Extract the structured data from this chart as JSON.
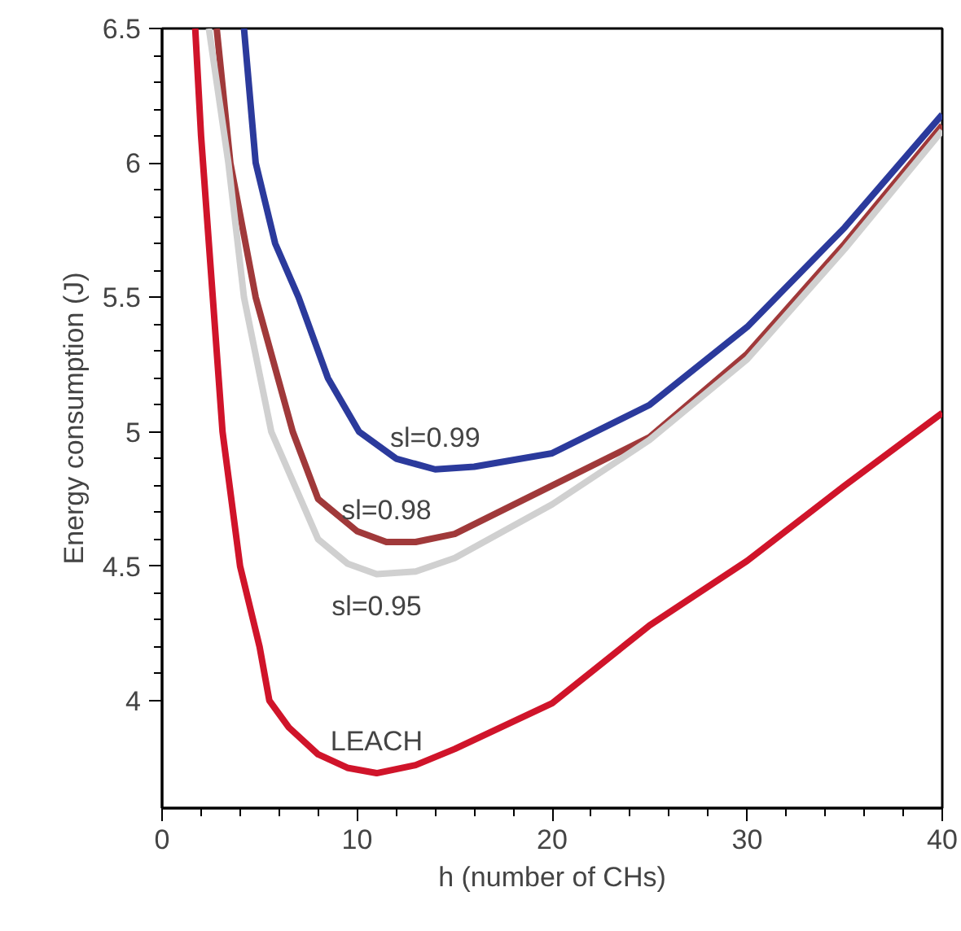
{
  "chart_data": {
    "type": "line",
    "xlabel": "h (number of CHs)",
    "ylabel": "Energy consumption (J)",
    "xlim": [
      0,
      40
    ],
    "ylim": [
      3.6,
      6.5
    ],
    "xticks": [
      0,
      10,
      20,
      30,
      40
    ],
    "yticks": [
      4,
      4.5,
      5,
      5.5,
      6,
      6.5
    ],
    "grid": false,
    "series": [
      {
        "name": "sl=0.99",
        "color": "#2b3a9c",
        "x": [
          4.2,
          4.8,
          5.8,
          7.0,
          8.5,
          10.1,
          12,
          14,
          16,
          20,
          25,
          30,
          35,
          40
        ],
        "values": [
          6.5,
          6.0,
          5.7,
          5.5,
          5.2,
          5.0,
          4.9,
          4.86,
          4.87,
          4.92,
          5.1,
          5.39,
          5.76,
          6.18
        ]
      },
      {
        "name": "sl=0.98",
        "color": "#a0393a",
        "x": [
          2.8,
          3.5,
          4.8,
          6.7,
          8,
          10,
          11.5,
          13,
          15,
          20,
          25,
          30,
          35,
          40
        ],
        "values": [
          6.5,
          6.0,
          5.5,
          5.0,
          4.75,
          4.63,
          4.59,
          4.59,
          4.62,
          4.8,
          4.98,
          5.29,
          5.7,
          6.14
        ]
      },
      {
        "name": "sl=0.95",
        "color": "#d0d0d0",
        "x": [
          2.4,
          3.4,
          4.2,
          5.6,
          8,
          9.5,
          11,
          13,
          15,
          20,
          25,
          30,
          35,
          40
        ],
        "values": [
          6.5,
          6.0,
          5.5,
          5.0,
          4.6,
          4.51,
          4.47,
          4.48,
          4.53,
          4.73,
          4.97,
          5.27,
          5.68,
          6.12
        ]
      },
      {
        "name": "LEACH",
        "color": "#d0142a",
        "x": [
          1.7,
          2.0,
          2.5,
          3.1,
          4.0,
          5.0,
          5.5,
          6.5,
          8,
          9.5,
          11,
          13,
          15,
          20,
          25,
          30,
          35,
          40
        ],
        "values": [
          6.5,
          6.1,
          5.6,
          5.0,
          4.5,
          4.2,
          4.0,
          3.9,
          3.8,
          3.75,
          3.73,
          3.76,
          3.82,
          3.99,
          4.28,
          4.52,
          4.8,
          5.07
        ]
      }
    ]
  }
}
